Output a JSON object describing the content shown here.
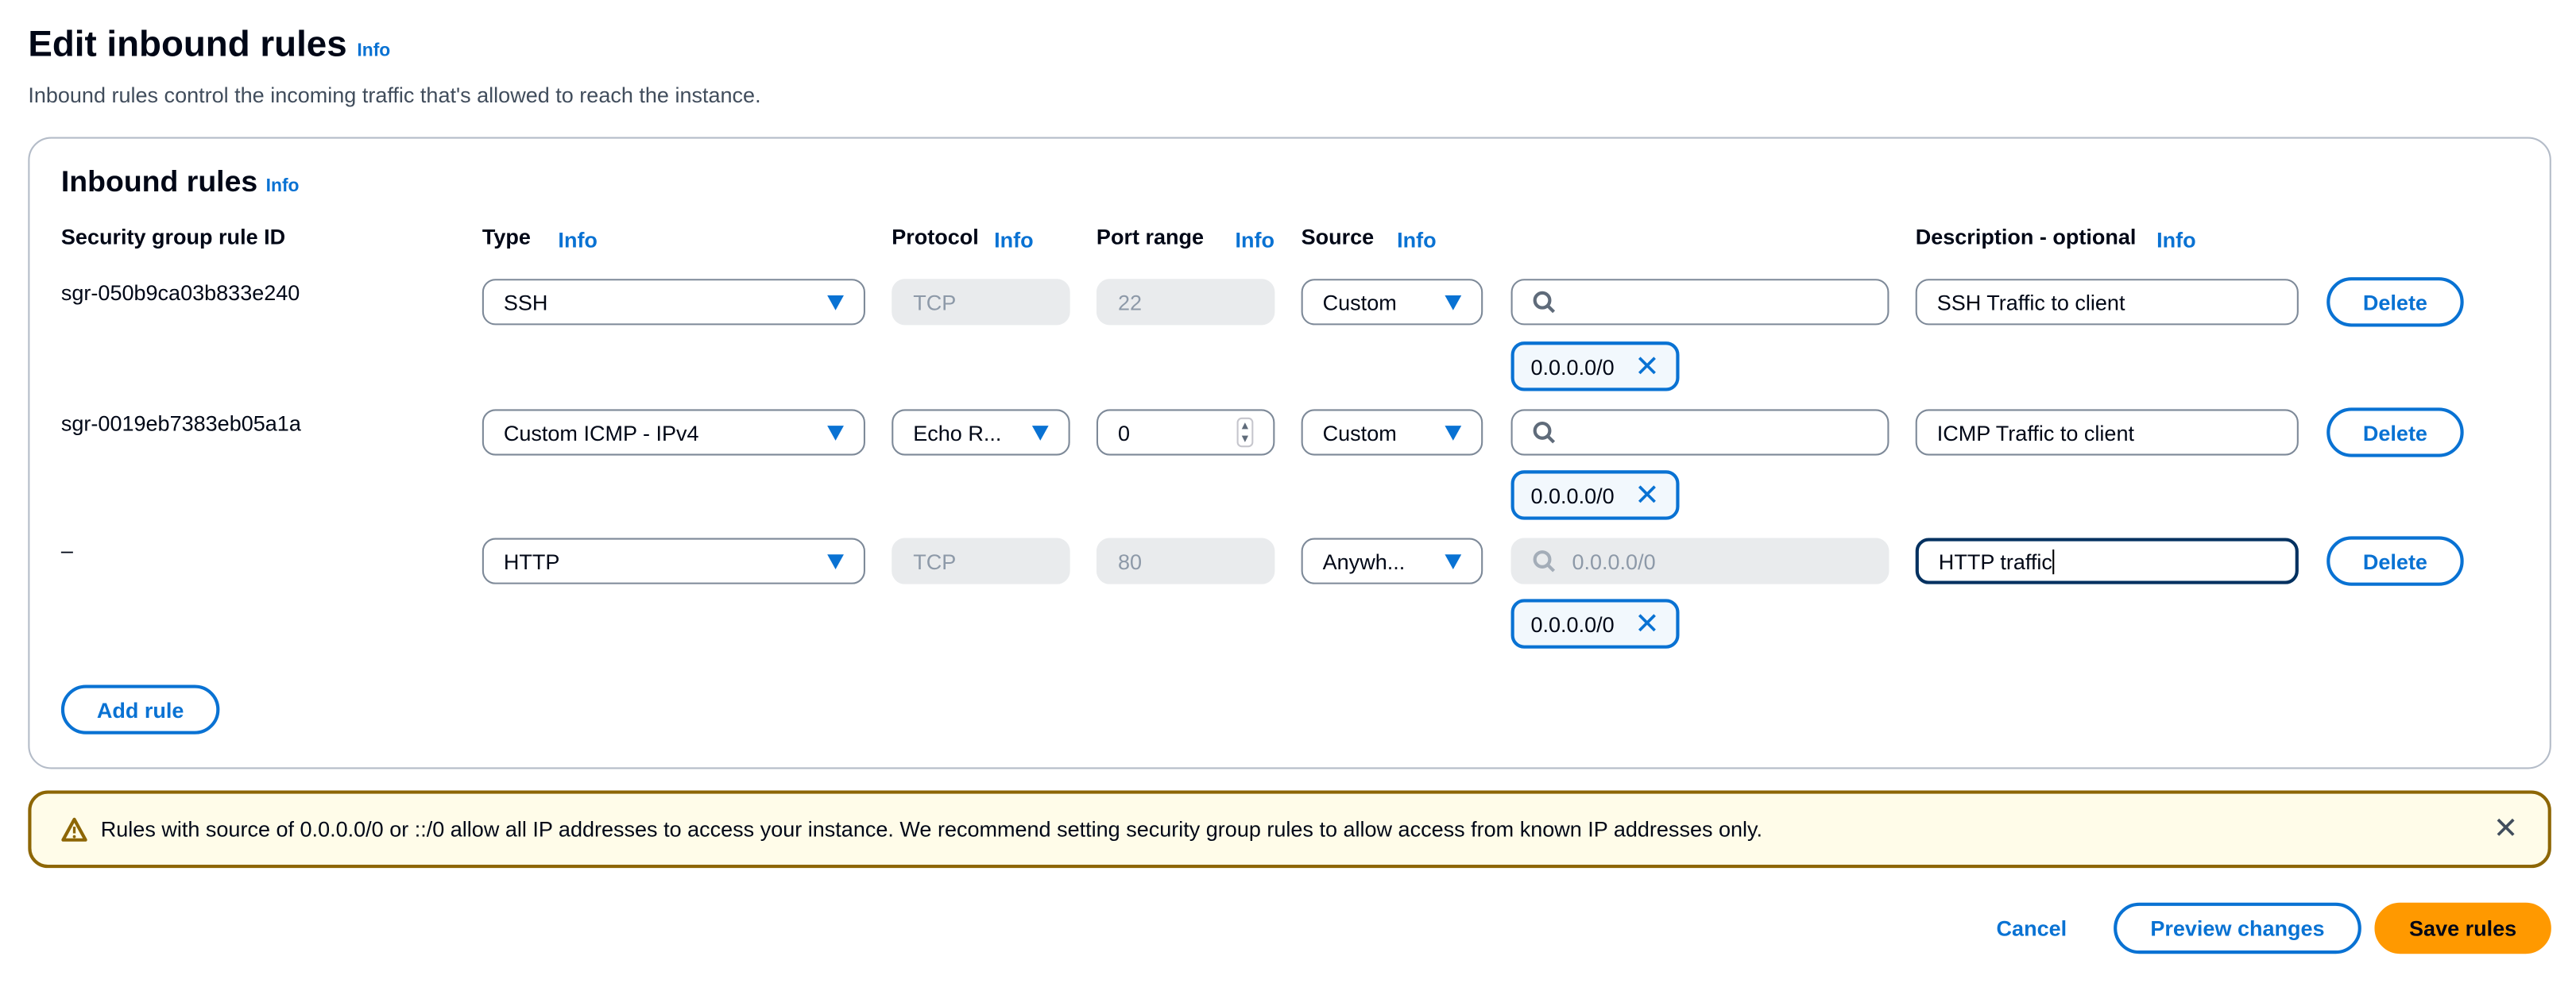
{
  "page": {
    "title": "Edit inbound rules",
    "info": "Info",
    "subtitle": "Inbound rules control the incoming traffic that's allowed to reach the instance."
  },
  "panel": {
    "title": "Inbound rules",
    "info": "Info",
    "headers": {
      "id": "Security group rule ID",
      "type": "Type",
      "protocol": "Protocol",
      "port": "Port range",
      "source": "Source",
      "description": "Description - optional",
      "info": "Info"
    },
    "rules": [
      {
        "id": "sgr-050b9ca03b833e240",
        "type": "SSH",
        "protocol": "TCP",
        "port": "22",
        "source": "Custom",
        "search": "",
        "token": "0.0.0.0/0",
        "description": "SSH Traffic to client",
        "delete": "Delete"
      },
      {
        "id": "sgr-0019eb7383eb05a1a",
        "type": "Custom ICMP - IPv4",
        "protocol": "Echo R...",
        "port": "0",
        "source": "Custom",
        "search": "",
        "token": "0.0.0.0/0",
        "description": "ICMP Traffic to client",
        "delete": "Delete"
      },
      {
        "id": "–",
        "type": "HTTP",
        "protocol": "TCP",
        "port": "80",
        "source": "Anywh...",
        "search_placeholder": "0.0.0.0/0",
        "token": "0.0.0.0/0",
        "description": "HTTP traffic",
        "delete": "Delete"
      }
    ],
    "add_rule": "Add rule"
  },
  "warning": {
    "text": "Rules with source of 0.0.0.0/0 or ::/0 allow all IP addresses to access your instance. We recommend setting security group rules to allow access from known IP addresses only."
  },
  "footer": {
    "cancel": "Cancel",
    "preview": "Preview changes",
    "save": "Save rules"
  },
  "colors": {
    "accent": "#0972d3",
    "primary": "#ff9900",
    "warning_border": "#8d6605",
    "warning_bg": "#fffce9"
  }
}
